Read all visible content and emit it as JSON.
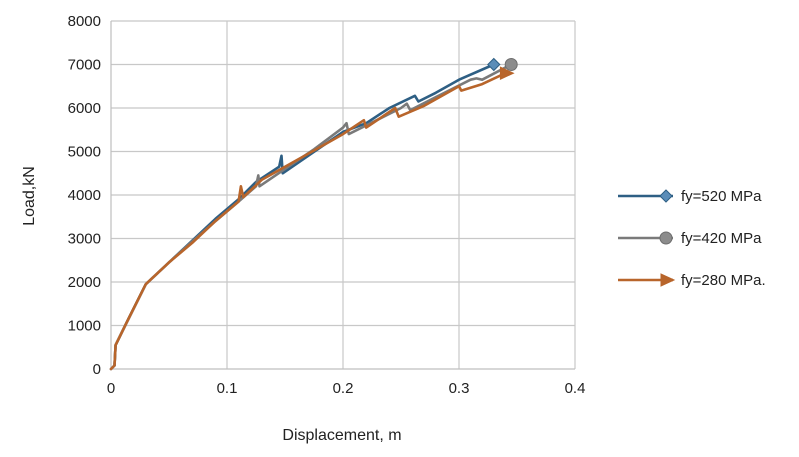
{
  "chart_data": {
    "type": "line",
    "xlabel": "Displacement, m",
    "ylabel": "Load,kN",
    "xlim": [
      0,
      0.4
    ],
    "ylim": [
      0,
      8000
    ],
    "x_ticks": [
      "0",
      "0.1",
      "0.2",
      "0.3",
      "0.4"
    ],
    "y_ticks": [
      "0",
      "1000",
      "2000",
      "3000",
      "4000",
      "5000",
      "6000",
      "7000",
      "8000"
    ],
    "grid": true,
    "legend_position": "right",
    "series": [
      {
        "name": "fy=520 MPa",
        "color": "#2e5f84",
        "marker": "diamond",
        "points": [
          [
            0,
            0
          ],
          [
            0.003,
            80
          ],
          [
            0.004,
            550
          ],
          [
            0.015,
            1150
          ],
          [
            0.03,
            1950
          ],
          [
            0.05,
            2450
          ],
          [
            0.07,
            2950
          ],
          [
            0.09,
            3450
          ],
          [
            0.11,
            3900
          ],
          [
            0.125,
            4300
          ],
          [
            0.145,
            4650
          ],
          [
            0.147,
            4900
          ],
          [
            0.148,
            4500
          ],
          [
            0.17,
            4900
          ],
          [
            0.2,
            5450
          ],
          [
            0.22,
            5650
          ],
          [
            0.24,
            6000
          ],
          [
            0.262,
            6280
          ],
          [
            0.265,
            6150
          ],
          [
            0.28,
            6350
          ],
          [
            0.3,
            6650
          ],
          [
            0.33,
            7000
          ]
        ]
      },
      {
        "name": "fy=420 MPa",
        "color": "#7a7a7a",
        "marker": "circle",
        "points": [
          [
            0,
            0
          ],
          [
            0.003,
            80
          ],
          [
            0.004,
            550
          ],
          [
            0.015,
            1150
          ],
          [
            0.03,
            1950
          ],
          [
            0.05,
            2450
          ],
          [
            0.07,
            2930
          ],
          [
            0.09,
            3400
          ],
          [
            0.11,
            3850
          ],
          [
            0.125,
            4200
          ],
          [
            0.127,
            4450
          ],
          [
            0.128,
            4200
          ],
          [
            0.15,
            4600
          ],
          [
            0.175,
            5050
          ],
          [
            0.2,
            5550
          ],
          [
            0.203,
            5650
          ],
          [
            0.205,
            5400
          ],
          [
            0.22,
            5600
          ],
          [
            0.25,
            6000
          ],
          [
            0.255,
            6100
          ],
          [
            0.258,
            5950
          ],
          [
            0.28,
            6250
          ],
          [
            0.31,
            6650
          ],
          [
            0.315,
            6680
          ],
          [
            0.32,
            6650
          ],
          [
            0.345,
            7000
          ]
        ]
      },
      {
        "name": "fy=280 MPa.",
        "color": "#b8652b",
        "marker": "arrow",
        "points": [
          [
            0,
            0
          ],
          [
            0.003,
            80
          ],
          [
            0.004,
            550
          ],
          [
            0.015,
            1150
          ],
          [
            0.03,
            1950
          ],
          [
            0.05,
            2450
          ],
          [
            0.07,
            2900
          ],
          [
            0.09,
            3400
          ],
          [
            0.11,
            3850
          ],
          [
            0.112,
            4200
          ],
          [
            0.114,
            3950
          ],
          [
            0.13,
            4350
          ],
          [
            0.14,
            4500
          ],
          [
            0.16,
            4800
          ],
          [
            0.18,
            5100
          ],
          [
            0.2,
            5400
          ],
          [
            0.218,
            5720
          ],
          [
            0.22,
            5550
          ],
          [
            0.245,
            6000
          ],
          [
            0.248,
            5800
          ],
          [
            0.27,
            6050
          ],
          [
            0.3,
            6500
          ],
          [
            0.302,
            6400
          ],
          [
            0.32,
            6550
          ],
          [
            0.34,
            6800
          ]
        ]
      }
    ]
  }
}
